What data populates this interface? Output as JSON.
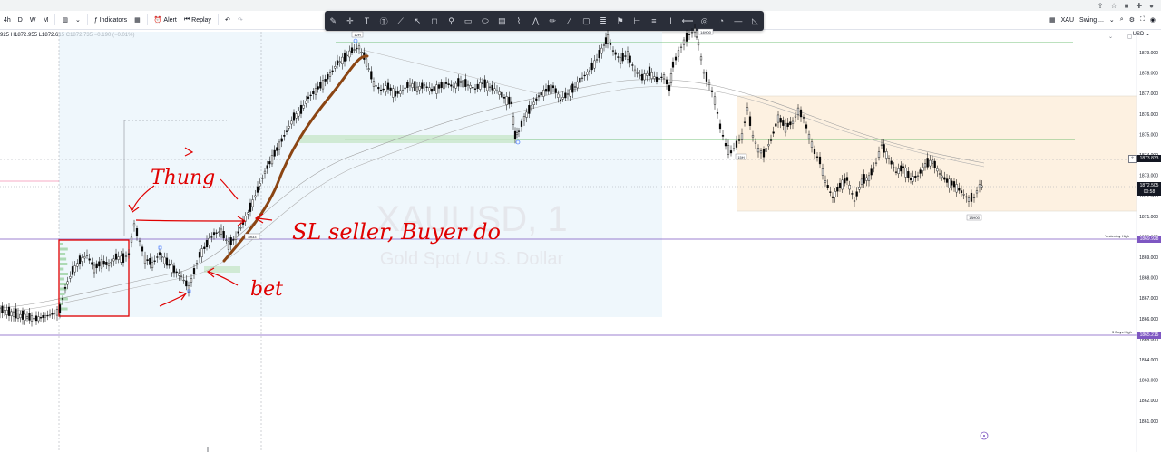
{
  "topbar": {
    "intervals": [
      "4h",
      "D",
      "W",
      "M"
    ],
    "indicators_label": "Indicators",
    "alert_label": "Alert",
    "replay_label": "Replay"
  },
  "symbol_panel": {
    "symbol": "XAU",
    "layout": "Swing ..."
  },
  "legend": {
    "text": "925 H1872.955 L1872.615 C1872.735 −0.190 (−0.01%)"
  },
  "currency": "USD",
  "watermark": {
    "symbol": "XAUUSD, 1",
    "name": "Gold Spot / U.S. Dollar"
  },
  "price_axis": {
    "ticks": [
      "1879.000",
      "1878.000",
      "1877.000",
      "1876.000",
      "1875.000",
      "1874.000",
      "1873.000",
      "1872.000",
      "1871.000",
      "1870.000",
      "1869.000",
      "1868.000",
      "1867.000",
      "1866.000",
      "1865.000",
      "1864.000",
      "1863.000",
      "1862.000",
      "1861.000"
    ],
    "current_price": "1872.505",
    "countdown": "00:58",
    "price_1873": "1873.833",
    "yesterday_high": "1869.928",
    "three_days_high": "1865.215"
  },
  "line_tags": {
    "yesterday_high": "Yesterday High",
    "three_days_high": "3 Days High"
  },
  "chart_labels": {
    "top_box": "12H",
    "peak_box": "14H00",
    "mid_box": "15H",
    "bottom_box": "18H00",
    "small_box": "8h33"
  },
  "annotations": {
    "thung": "Thung",
    "sl_sellers": "SL seller, Buyer do",
    "bet": "bet",
    "arrow_mark": ">"
  },
  "colors": {
    "accent_purple": "#7e57c2",
    "hline_green": "#4caf50",
    "candle": "#000000",
    "annot_red": "#e00000",
    "thick_line": "#8b4513",
    "range_box": "#fdf1e1",
    "highlight_blue": "#e3f2fd"
  }
}
